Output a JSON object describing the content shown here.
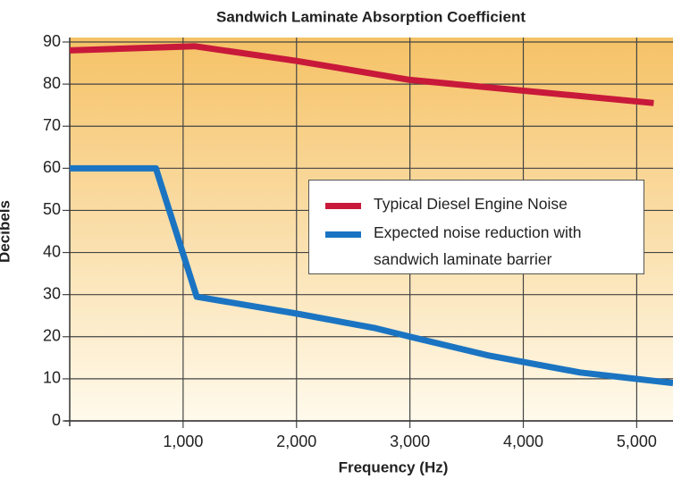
{
  "chart_data": {
    "type": "line",
    "title": "Sandwich Laminate Absorption Coefficient",
    "x_label": "Frequency (Hz)",
    "y_label": "Decibels",
    "series": [
      {
        "name": "Typical Diesel Engine Noise",
        "color": "#c8193a",
        "x": [
          0,
          1100,
          2000,
          3000,
          5150
        ],
        "values": [
          88,
          89,
          85.5,
          81,
          75.5
        ]
      },
      {
        "name": "Expected noise reduction with sandwich laminate barrier",
        "color": "#1b74c2",
        "x": [
          0,
          760,
          1120,
          2000,
          2700,
          3000,
          3700,
          4500,
          5320
        ],
        "values": [
          60,
          60,
          29.5,
          25.5,
          22,
          20,
          15.5,
          11.5,
          9
        ]
      }
    ],
    "xlim": [
      0,
      5320
    ],
    "ylim": [
      0,
      90
    ],
    "xticks": [
      {
        "value": 1000,
        "label": "1,000"
      },
      {
        "value": 2000,
        "label": "2,000"
      },
      {
        "value": 3000,
        "label": "3,000"
      },
      {
        "value": 4000,
        "label": "4,000"
      },
      {
        "value": 5000,
        "label": "5,000"
      }
    ],
    "yticks": [
      0,
      10,
      20,
      30,
      40,
      50,
      60,
      70,
      80,
      90
    ],
    "grid": true
  }
}
